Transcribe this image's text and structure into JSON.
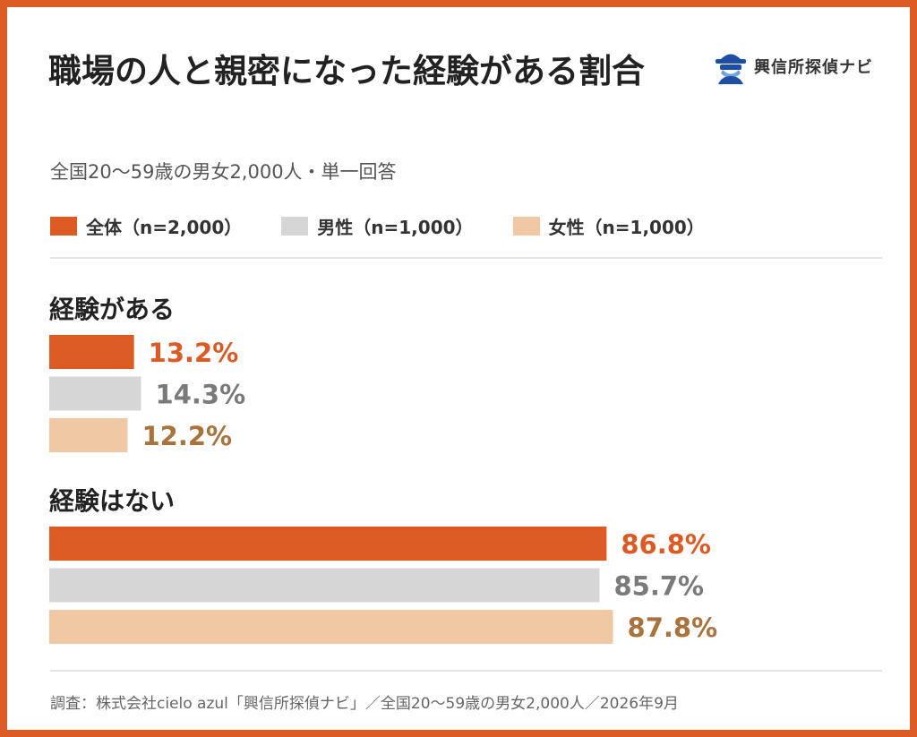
{
  "title": "職場の人と親密になった経験がある割合",
  "subtitle": "全国20〜59歳の男女2,000人・単一回答",
  "logo": {
    "text": "興信所探偵ナビ",
    "icon": "detective-icon"
  },
  "colors": {
    "accent": "#dc5a23",
    "all": "#dc5a23",
    "male": "#d6d6d6",
    "female": "#f0c8a4",
    "all_label": "#dc5a23",
    "male_label": "#7a7a7a",
    "female_label": "#a8733c"
  },
  "chart_data": {
    "type": "bar",
    "orientation": "horizontal",
    "categories": [
      "経験がある",
      "経験はない"
    ],
    "series": [
      {
        "name": "全体（n=2,000）",
        "values": [
          13.2,
          86.8
        ]
      },
      {
        "name": "男性（n=1,000）",
        "values": [
          14.3,
          85.7
        ]
      },
      {
        "name": "女性（n=1,000）",
        "values": [
          12.2,
          87.8
        ]
      }
    ],
    "value_labels": [
      [
        "13.2%",
        "86.8%"
      ],
      [
        "14.3%",
        "85.7%"
      ],
      [
        "12.2%",
        "87.8%"
      ]
    ],
    "unit": "%",
    "xlim": [
      0,
      100
    ],
    "legend_position": "top-left",
    "grid": false
  },
  "footer": "調査：株式会社cielo azul「興信所探偵ナビ」／全国20〜59歳の男女2,000人／2026年9月"
}
